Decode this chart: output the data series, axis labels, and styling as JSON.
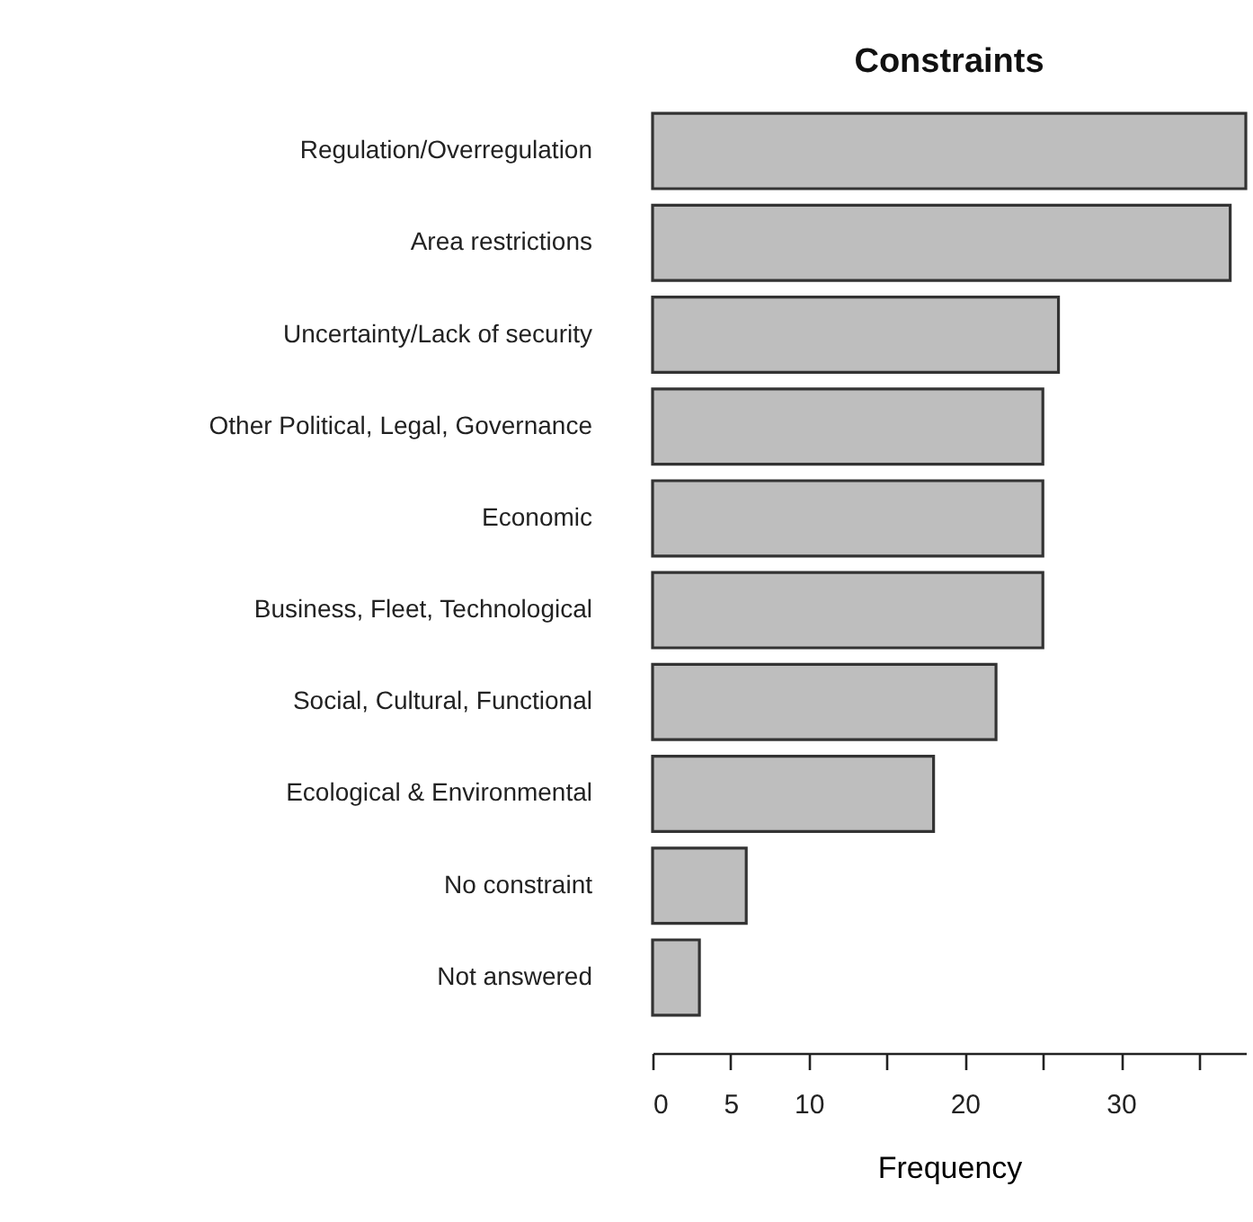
{
  "chart_data": {
    "type": "bar",
    "orientation": "horizontal",
    "title": "Constraints",
    "xlabel": "Frequency",
    "categories": [
      "Regulation/Overregulation",
      "Area restrictions",
      "Uncertainty/Lack of security",
      "Other Political, Legal, Governance",
      "Economic",
      "Business, Fleet, Technological",
      "Social, Cultural, Functional",
      "Ecological & Environmental",
      "No constraint",
      "Not answered"
    ],
    "values": [
      38,
      37,
      26,
      25,
      25,
      25,
      22,
      18,
      6,
      3
    ],
    "color": "#bebebe",
    "xlim": [
      0,
      38
    ],
    "xticks": [
      0,
      5,
      10,
      {
        "value": 15,
        "label": null
      },
      20,
      {
        "value": 25,
        "label": null
      },
      30,
      {
        "value": 35,
        "label": null
      }
    ],
    "grid": false
  }
}
